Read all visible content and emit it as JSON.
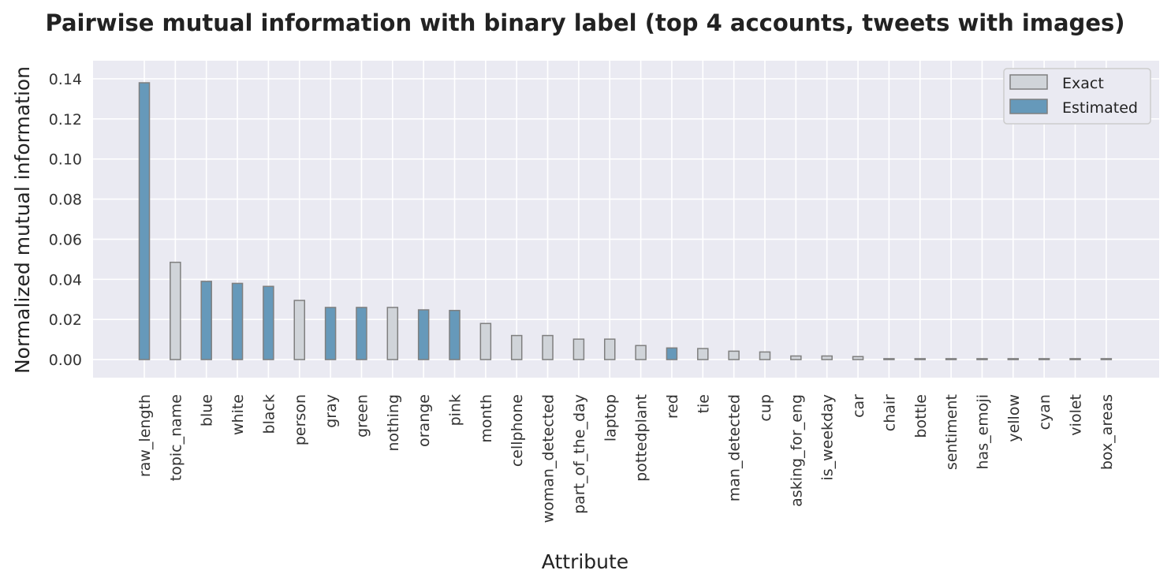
{
  "chart_data": {
    "type": "bar",
    "title": "Pairwise mutual information with binary label (top 4 accounts, tweets with images)",
    "xlabel": "Attribute",
    "ylabel": "Normalized mutual information",
    "ylim": [
      -0.009,
      0.149
    ],
    "yticks": [
      0.0,
      0.02,
      0.04,
      0.06,
      0.08,
      0.1,
      0.12,
      0.14
    ],
    "ytick_labels": [
      "0.00",
      "0.02",
      "0.04",
      "0.06",
      "0.08",
      "0.10",
      "0.12",
      "0.14"
    ],
    "grid": true,
    "legend_position": "top-right",
    "colors": {
      "background": "#EAEAF2",
      "grid": "#FFFFFF",
      "exact": "#D0D4D9",
      "estimated": "#6699BA",
      "edge": "#7F7F7F"
    },
    "legend": [
      {
        "key": "exact",
        "label": "Exact"
      },
      {
        "key": "estimated",
        "label": "Estimated"
      }
    ],
    "categories": [
      "raw_length",
      "topic_name",
      "blue",
      "white",
      "black",
      "person",
      "gray",
      "green",
      "nothing",
      "orange",
      "pink",
      "month",
      "cellphone",
      "woman_detected",
      "part_of_the_day",
      "laptop",
      "pottedplant",
      "red",
      "tie",
      "man_detected",
      "cup",
      "asking_for_eng",
      "is_weekday",
      "car",
      "chair",
      "bottle",
      "sentiment",
      "has_emoji",
      "yellow",
      "cyan",
      "violet",
      "box_areas"
    ],
    "values": [
      0.138,
      0.0485,
      0.039,
      0.038,
      0.0365,
      0.0295,
      0.026,
      0.026,
      0.026,
      0.0248,
      0.0245,
      0.018,
      0.012,
      0.012,
      0.0102,
      0.0102,
      0.007,
      0.0058,
      0.0055,
      0.0042,
      0.0038,
      0.0018,
      0.0018,
      0.0015,
      0.0003,
      0.0002,
      0.0002,
      0.0002,
      0.0002,
      0.0002,
      0.0002,
      0.0002
    ],
    "kinds": [
      "estimated",
      "exact",
      "estimated",
      "estimated",
      "estimated",
      "exact",
      "estimated",
      "estimated",
      "exact",
      "estimated",
      "estimated",
      "exact",
      "exact",
      "exact",
      "exact",
      "exact",
      "exact",
      "estimated",
      "exact",
      "exact",
      "exact",
      "exact",
      "exact",
      "exact",
      "exact",
      "exact",
      "exact",
      "exact",
      "exact",
      "exact",
      "exact",
      "exact"
    ]
  }
}
